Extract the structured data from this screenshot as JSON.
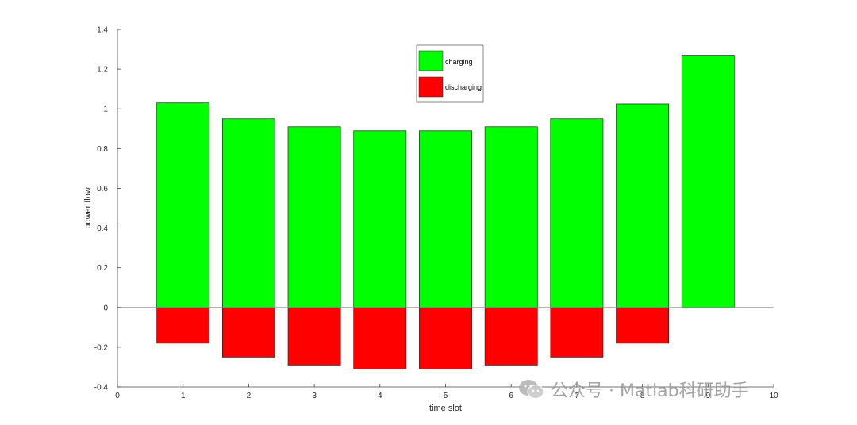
{
  "chart_data": {
    "type": "bar",
    "stacked": true,
    "categories": [
      "1",
      "2",
      "3",
      "4",
      "5",
      "6",
      "7",
      "8",
      "9"
    ],
    "series": [
      {
        "name": "charging",
        "color": "#00ff00",
        "values": [
          1.03,
          0.95,
          0.91,
          0.89,
          0.89,
          0.91,
          0.95,
          1.025,
          1.27
        ]
      },
      {
        "name": "discharging",
        "color": "#ff0000",
        "values": [
          -0.18,
          -0.25,
          -0.29,
          -0.31,
          -0.31,
          -0.29,
          -0.25,
          -0.18,
          0
        ]
      }
    ],
    "xlabel": "time slot",
    "ylabel": "power flow",
    "xlim": [
      0,
      10
    ],
    "ylim": [
      -0.4,
      1.4
    ],
    "xticks": [
      "0",
      "1",
      "2",
      "3",
      "4",
      "5",
      "6",
      "7",
      "8",
      "9",
      "10"
    ],
    "yticks": [
      "-0.4",
      "-0.2",
      "0",
      "0.2",
      "0.4",
      "0.6",
      "0.8",
      "1",
      "1.2",
      "1.4"
    ],
    "legend_position": "top-center",
    "grid": false
  },
  "watermark": {
    "text": "公众号 · Matlab科研助手",
    "icon": "wechat-icon",
    "color": "#9a9a9a"
  }
}
